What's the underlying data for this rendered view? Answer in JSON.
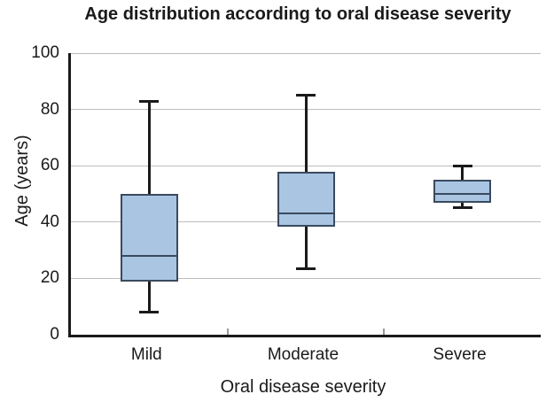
{
  "title": "Age distribution according to oral disease severity",
  "chart_data": {
    "type": "boxplot",
    "title": "Age distribution according to oral disease severity",
    "categories": [
      "Mild",
      "Moderate",
      "Severe"
    ],
    "series": [
      {
        "name": "Mild",
        "min": 8,
        "q1": 19,
        "median": 28,
        "q3": 50,
        "max": 83
      },
      {
        "name": "Moderate",
        "min": 23.5,
        "q1": 38.5,
        "median": 43,
        "q3": 58,
        "max": 85
      },
      {
        "name": "Severe",
        "min": 45,
        "q1": 47,
        "median": 50,
        "q3": 55,
        "max": 60
      }
    ],
    "xlabel": "Oral disease severity",
    "ylabel": "Age (years)",
    "ylim": [
      0,
      100
    ],
    "yticks": [
      0,
      20,
      40,
      60,
      80,
      100
    ],
    "grid": true,
    "legend": "none",
    "colors": {
      "box_fill": "#a9c5e2",
      "box_border": "#3a4a5e",
      "whisker": "#1a1a1a",
      "gridline": "#bdbdbd",
      "axis": "#1a1a1a",
      "text": "#1a1a1a"
    }
  }
}
